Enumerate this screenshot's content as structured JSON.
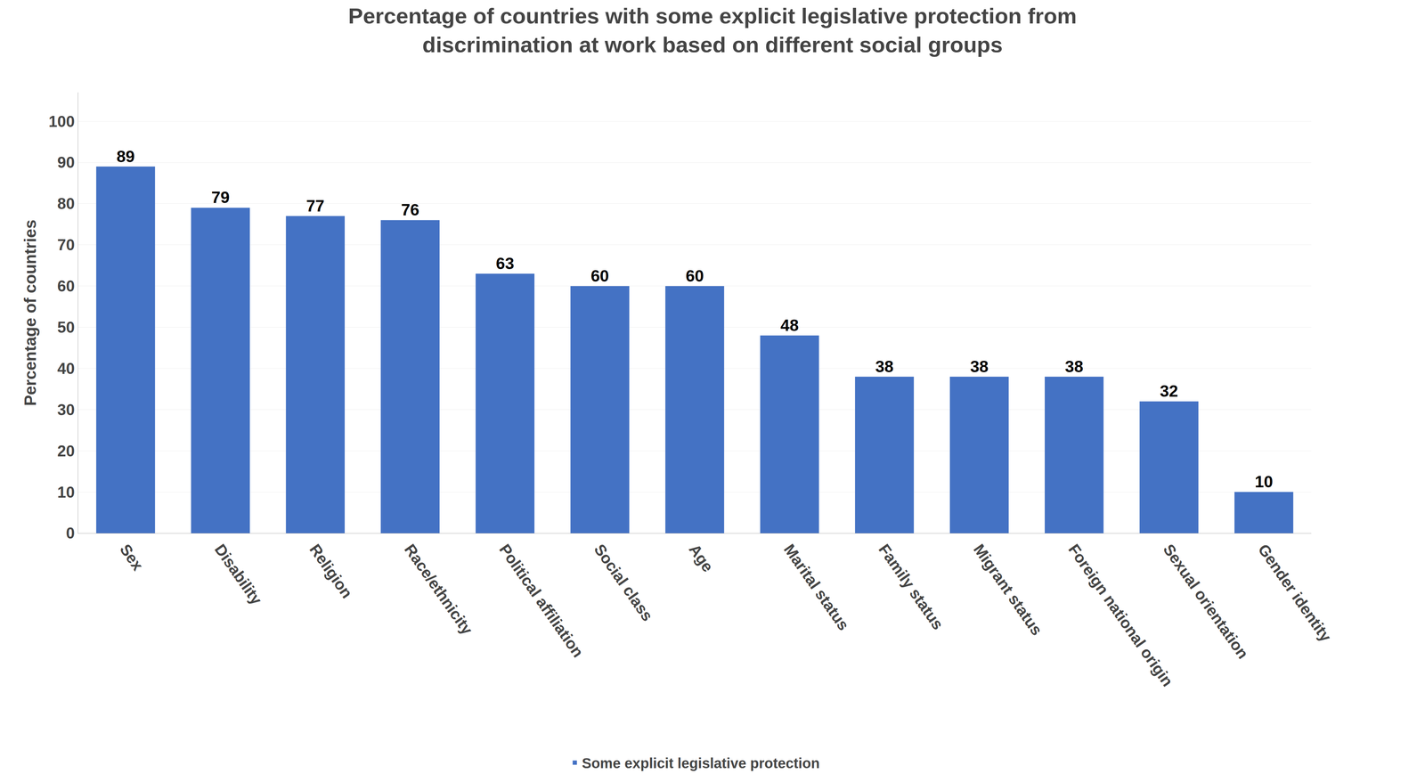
{
  "chart_data": {
    "type": "bar",
    "title": "Percentage of countries with some explicit legislative protection from\ndiscrimination at work based on different social groups",
    "categories": [
      "Sex",
      "Disability",
      "Religion",
      "Race/ethnicity",
      "Political affiliation",
      "Social class",
      "Age",
      "Marital status",
      "Family status",
      "Migrant status",
      "Foreign national origin",
      "Sexual orientation",
      "Gender identity"
    ],
    "series": [
      {
        "name": "Some explicit legislative protection",
        "color": "#4472C4",
        "values": [
          89,
          79,
          77,
          76,
          63,
          60,
          60,
          48,
          38,
          38,
          38,
          32,
          10
        ]
      }
    ],
    "ylabel": "Percentage of countries",
    "ylim": [
      0,
      107
    ],
    "yticks": [
      0,
      10,
      20,
      30,
      40,
      50,
      60,
      70,
      80,
      90,
      100
    ],
    "grid": true,
    "data_labels": true,
    "legend": "bottom"
  }
}
